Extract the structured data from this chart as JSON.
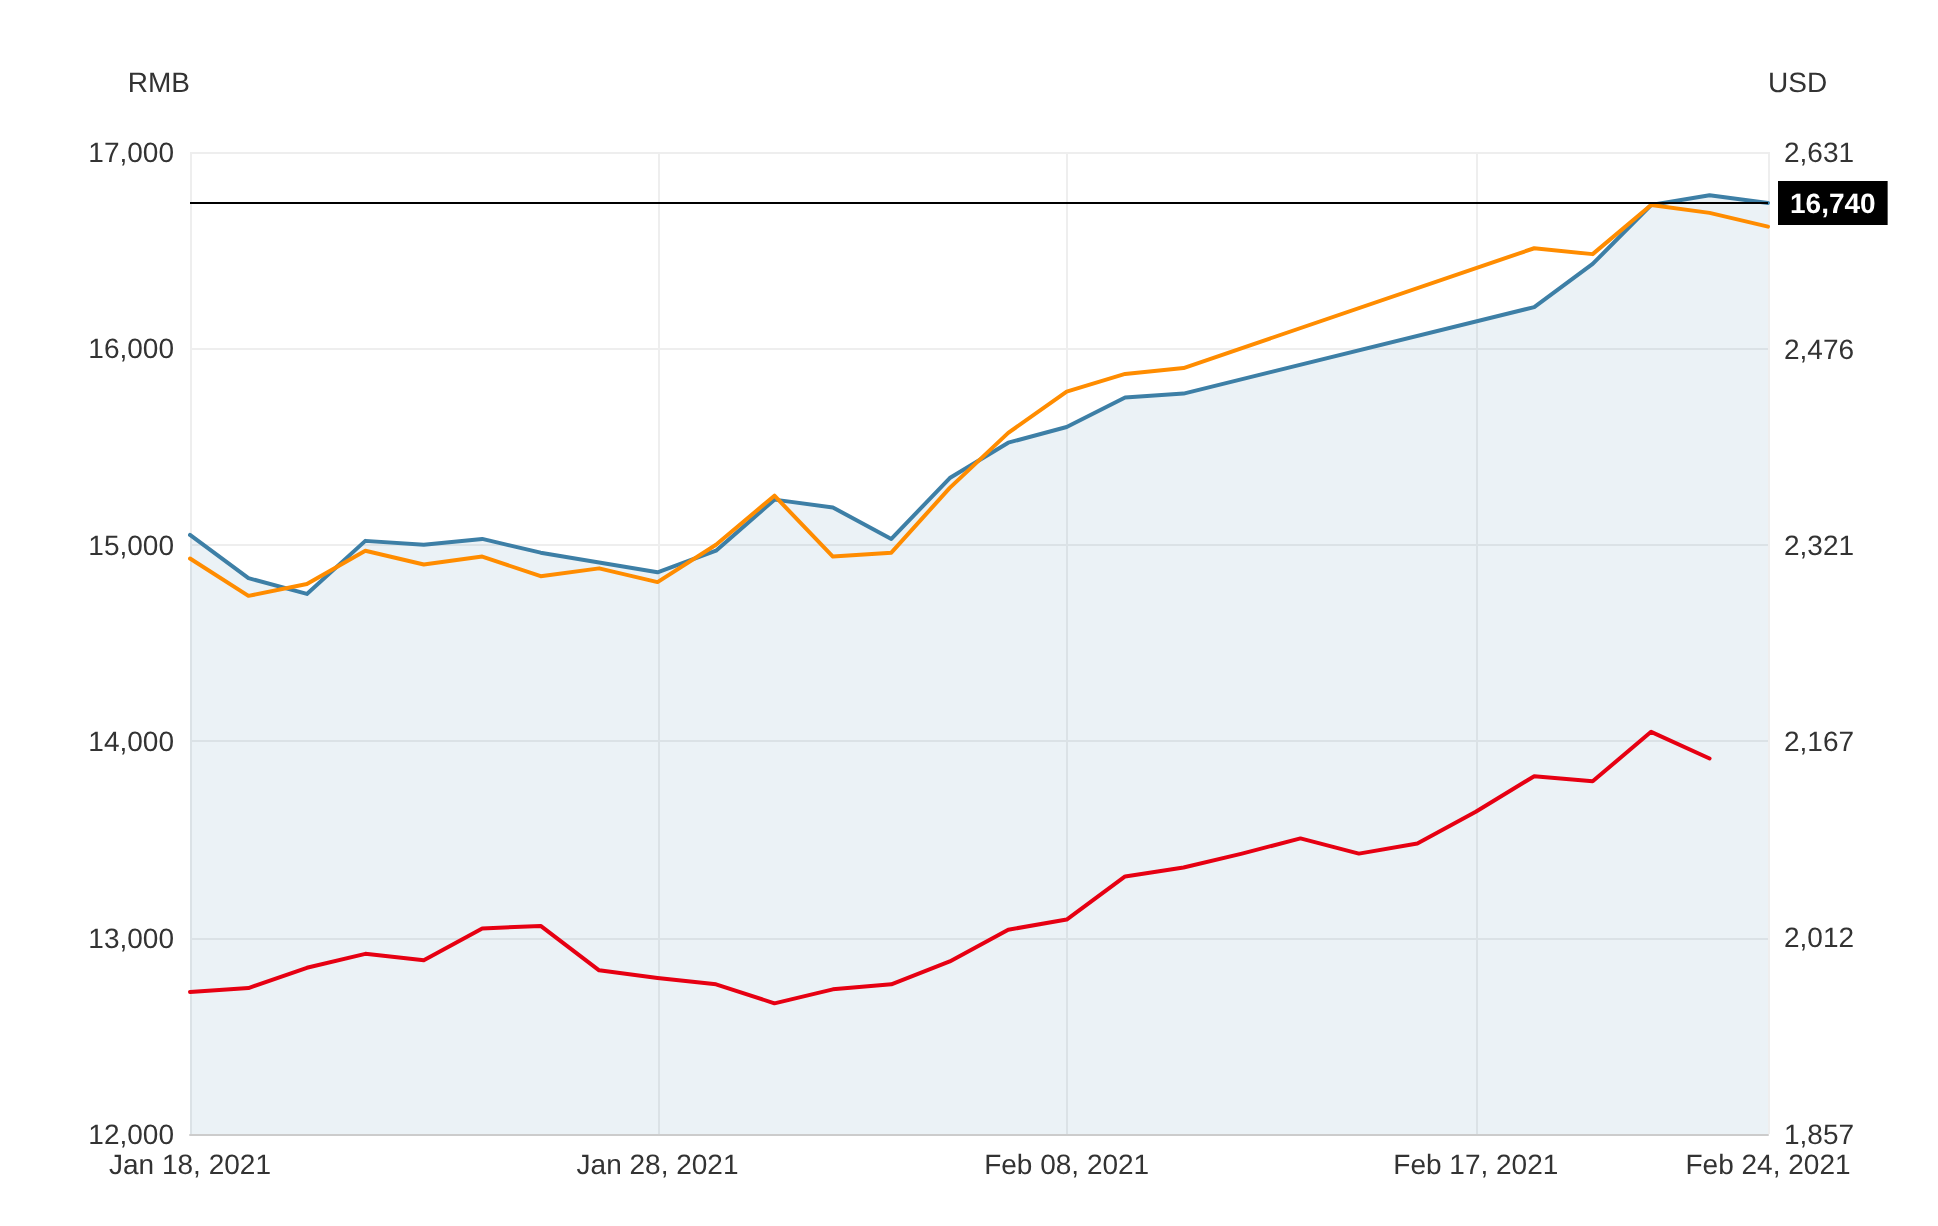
{
  "chart_data": {
    "type": "line",
    "ylabel": "RMB",
    "y2label": "USD",
    "categories": [
      "Jan 18, 2021",
      null,
      null,
      null,
      null,
      null,
      null,
      null,
      "Jan 28, 2021",
      null,
      null,
      null,
      null,
      null,
      null,
      "Feb 08, 2021",
      null,
      null,
      null,
      null,
      null,
      null,
      "Feb 17, 2021",
      null,
      null,
      null,
      null,
      "Feb 24, 2021"
    ],
    "series": [
      {
        "type": "area",
        "color": "#3d7fa6",
        "values": [
          15050,
          14830,
          14750,
          15020,
          15000,
          15030,
          14960,
          14910,
          14860,
          14970,
          15230,
          15190,
          15030,
          15340,
          15520,
          15600,
          15750,
          15770,
          null,
          null,
          null,
          null,
          null,
          16210,
          16430,
          16730,
          16780,
          16740
        ]
      },
      {
        "color": "#ff8c00",
        "values": [
          14930,
          14740,
          14800,
          14970,
          14900,
          14940,
          14840,
          14880,
          14810,
          15000,
          15250,
          14940,
          14960,
          15290,
          15570,
          15780,
          15870,
          15900,
          null,
          null,
          null,
          null,
          null,
          16510,
          16480,
          16730,
          16690,
          16620
        ]
      },
      {
        "color": "#e60012",
        "axis": "y2",
        "values": [
          1969,
          1972,
          1988,
          1999,
          1994,
          2019,
          2021,
          1986,
          1980,
          1975,
          1960,
          1971,
          1975,
          1993,
          2018,
          2026,
          2060,
          2067,
          2078,
          2090,
          2078,
          2086,
          2111,
          2139,
          2135,
          2174,
          2153,
          null
        ]
      }
    ],
    "ylim": [
      12000,
      17000
    ],
    "yticks": [
      {
        "value": 12000,
        "label": "12,000"
      },
      {
        "value": 13000,
        "label": "13,000"
      },
      {
        "value": 14000,
        "label": "14,000"
      },
      {
        "value": 15000,
        "label": "15,000"
      },
      {
        "value": 16000,
        "label": "16,000"
      },
      {
        "value": 17000,
        "label": "17,000"
      }
    ],
    "y2lim": [
      1857,
      2631
    ],
    "y2ticks": [
      {
        "value": 1857,
        "label": "1,857"
      },
      {
        "value": 2012,
        "label": "2,012"
      },
      {
        "value": 2167,
        "label": "2,167"
      },
      {
        "value": 2321,
        "label": "2,321"
      },
      {
        "value": 2476,
        "label": "2,476"
      },
      {
        "value": 2631,
        "label": "2,631"
      }
    ],
    "ref_lines": [
      {
        "axis": "y",
        "value": 16740,
        "label": "16,740",
        "color": "#000000"
      }
    ],
    "grid": true,
    "marker": "none",
    "line_style": "solid"
  }
}
